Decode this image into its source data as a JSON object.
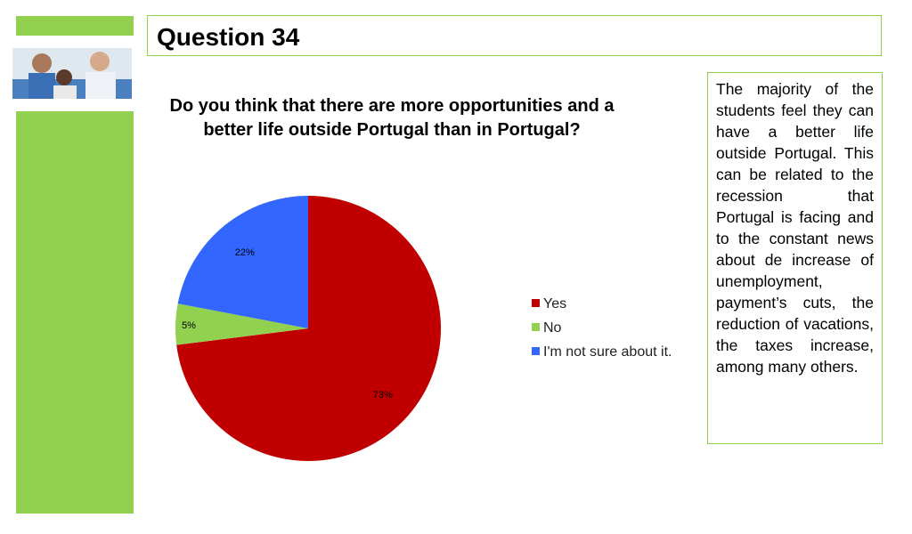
{
  "header": {
    "title": "Question 34"
  },
  "chart_data": {
    "type": "pie",
    "title": "Do you think that there are more opportunities and a better life outside Portugal than in Portugal?",
    "categories": [
      "Yes",
      "No",
      "I'm not sure about it."
    ],
    "values": [
      73,
      5,
      22
    ],
    "value_labels": [
      "73%",
      "5%",
      "22%"
    ],
    "colors": [
      "#c00000",
      "#92d050",
      "#3366ff"
    ],
    "legend": "right"
  },
  "note": {
    "text": "The majority of the students feel they can have a better life outside Portugal. This can be related to the recession that Portugal is facing and to the constant news about de increase of unemployment, payment’s cuts, the reduction of vacations, the taxes increase, among many others."
  }
}
